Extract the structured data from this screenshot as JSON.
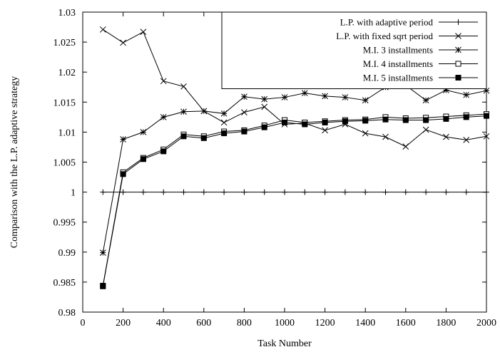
{
  "chart_data": {
    "type": "line",
    "title": "",
    "xlabel": "Task Number",
    "ylabel": "Comparison with the L.P. adaptive strategy",
    "xlim": [
      0,
      2000
    ],
    "ylim": [
      0.98,
      1.03
    ],
    "x_ticks": [
      0,
      200,
      400,
      600,
      800,
      1000,
      1200,
      1400,
      1600,
      1800,
      2000
    ],
    "y_ticks": [
      0.98,
      0.985,
      0.99,
      0.995,
      1,
      1.005,
      1.01,
      1.015,
      1.02,
      1.025,
      1.03
    ],
    "x_tick_labels": [
      "0",
      "200",
      "400",
      "600",
      "800",
      "1000",
      "1200",
      "1400",
      "1600",
      "1800",
      "2000"
    ],
    "y_tick_labels": [
      "0.98",
      "0.985",
      "0.99",
      "0.995",
      "1",
      "1.005",
      "1.01",
      "1.015",
      "1.02",
      "1.025",
      "1.03"
    ],
    "grid": false,
    "legend_position": "top-right",
    "x": [
      100,
      200,
      300,
      400,
      500,
      600,
      700,
      800,
      900,
      1000,
      1100,
      1200,
      1300,
      1400,
      1500,
      1600,
      1700,
      1800,
      1900,
      2000
    ],
    "series": [
      {
        "name": "L.P. with adaptive period",
        "marker": "plus",
        "values": [
          1,
          1,
          1,
          1,
          1,
          1,
          1,
          1,
          1,
          1,
          1,
          1,
          1,
          1,
          1,
          1,
          1,
          1,
          1,
          1
        ]
      },
      {
        "name": "L.P. with fixed sqrt period",
        "marker": "cross",
        "values": [
          1.0271,
          1.0249,
          1.0267,
          1.0185,
          1.0176,
          1.0135,
          1.0116,
          1.0133,
          1.0142,
          1.0113,
          1.0115,
          1.0103,
          1.0113,
          1.0098,
          1.0092,
          1.0076,
          1.0104,
          1.0092,
          1.0087,
          1.0093
        ]
      },
      {
        "name": "M.I. 3 installments",
        "marker": "star",
        "values": [
          0.9899,
          1.0088,
          1.01,
          1.0125,
          1.0134,
          1.0135,
          1.0131,
          1.0159,
          1.0155,
          1.0158,
          1.0165,
          1.016,
          1.0158,
          1.0153,
          1.0175,
          1.0178,
          1.0153,
          1.017,
          1.0162,
          1.0169
        ]
      },
      {
        "name": "M.I. 4 installments",
        "marker": "open-square",
        "values": [
          0.9844,
          1.0033,
          1.0057,
          1.0071,
          1.0096,
          1.0093,
          1.0101,
          1.0103,
          1.0111,
          1.012,
          1.0116,
          1.0118,
          1.012,
          1.0121,
          1.0125,
          1.0123,
          1.0124,
          1.0126,
          1.0128,
          1.013
        ]
      },
      {
        "name": "M.I. 5 installments",
        "marker": "filled-square",
        "values": [
          0.9843,
          1.003,
          1.0055,
          1.0068,
          1.0093,
          1.009,
          1.0098,
          1.0101,
          1.0108,
          1.0116,
          1.0113,
          1.0116,
          1.0118,
          1.0119,
          1.0121,
          1.012,
          1.012,
          1.0122,
          1.0125,
          1.0127
        ]
      }
    ]
  }
}
